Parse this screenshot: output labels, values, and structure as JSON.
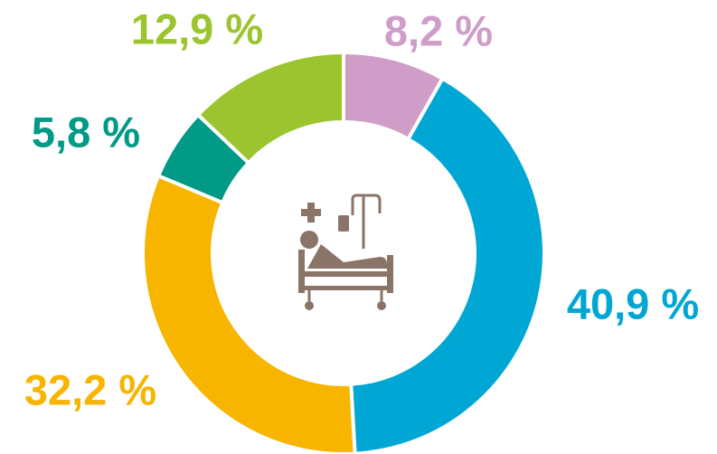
{
  "chart_data": {
    "type": "donut",
    "categories": [
      null,
      null,
      null,
      null,
      null
    ],
    "values": [
      8.2,
      40.9,
      32.2,
      5.8,
      12.9
    ],
    "value_labels": [
      "8,2 %",
      "40,9 %",
      "32,2 %",
      "5,8 %",
      "12,9 %"
    ],
    "colors": [
      "#cf9dc8",
      "#00a7d5",
      "#f7b500",
      "#009a86",
      "#9cc42f"
    ]
  }
}
